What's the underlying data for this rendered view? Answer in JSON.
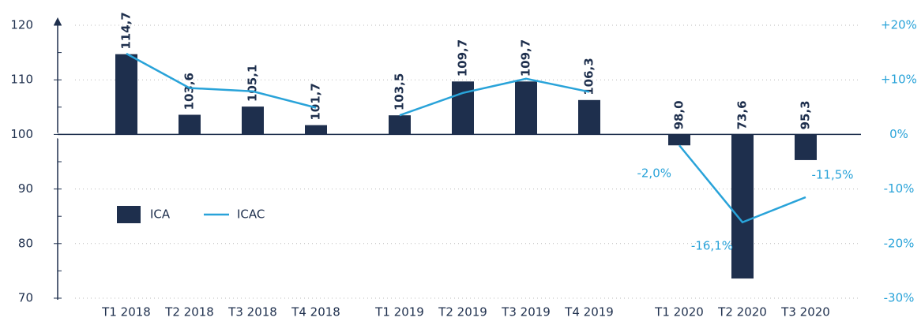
{
  "chart_data": {
    "type": "bar",
    "categories": [
      "T1 2018",
      "T2 2018",
      "T3 2018",
      "T4 2018",
      null,
      "T1 2019",
      "T2 2019",
      "T3 2019",
      "T4 2019",
      null,
      "T1 2020",
      "T2 2020",
      "T3 2020"
    ],
    "series": [
      {
        "name": "ICA",
        "type": "bar",
        "color": "#1e2f4d",
        "values": [
          114.7,
          103.6,
          105.1,
          101.7,
          null,
          103.5,
          109.7,
          109.7,
          106.3,
          null,
          98.0,
          73.6,
          95.3
        ],
        "value_labels": [
          "114,7",
          "103,6",
          "105,1",
          "101,7",
          null,
          "103,5",
          "109,7",
          "109,7",
          "106,3",
          null,
          "98,0",
          "73,6",
          "95,3"
        ]
      },
      {
        "name": "ICAC",
        "type": "line",
        "axis": "y2",
        "color": "#29a3d9",
        "values": [
          14.8,
          8.5,
          7.9,
          4.9,
          null,
          3.5,
          7.6,
          10.2,
          7.8,
          null,
          -2.0,
          -16.1,
          -11.5
        ],
        "value_labels": [
          null,
          null,
          null,
          null,
          null,
          null,
          null,
          null,
          null,
          null,
          "-2,0%",
          "-16,1%",
          "-11,5%"
        ]
      }
    ],
    "ylim": [
      70,
      120
    ],
    "yticks": [
      70,
      80,
      90,
      100,
      110,
      120
    ],
    "bar_base": 100,
    "y2lim": [
      -30,
      20
    ],
    "y2ticks": [
      {
        "value": -30,
        "label": "-30%"
      },
      {
        "value": -20,
        "label": "-20%"
      },
      {
        "value": -10,
        "label": "-10%"
      },
      {
        "value": 0,
        "label": "0%"
      },
      {
        "value": 10,
        "label": "+10%"
      },
      {
        "value": 20,
        "label": "+20%"
      }
    ],
    "grid": true,
    "legend": "left"
  }
}
